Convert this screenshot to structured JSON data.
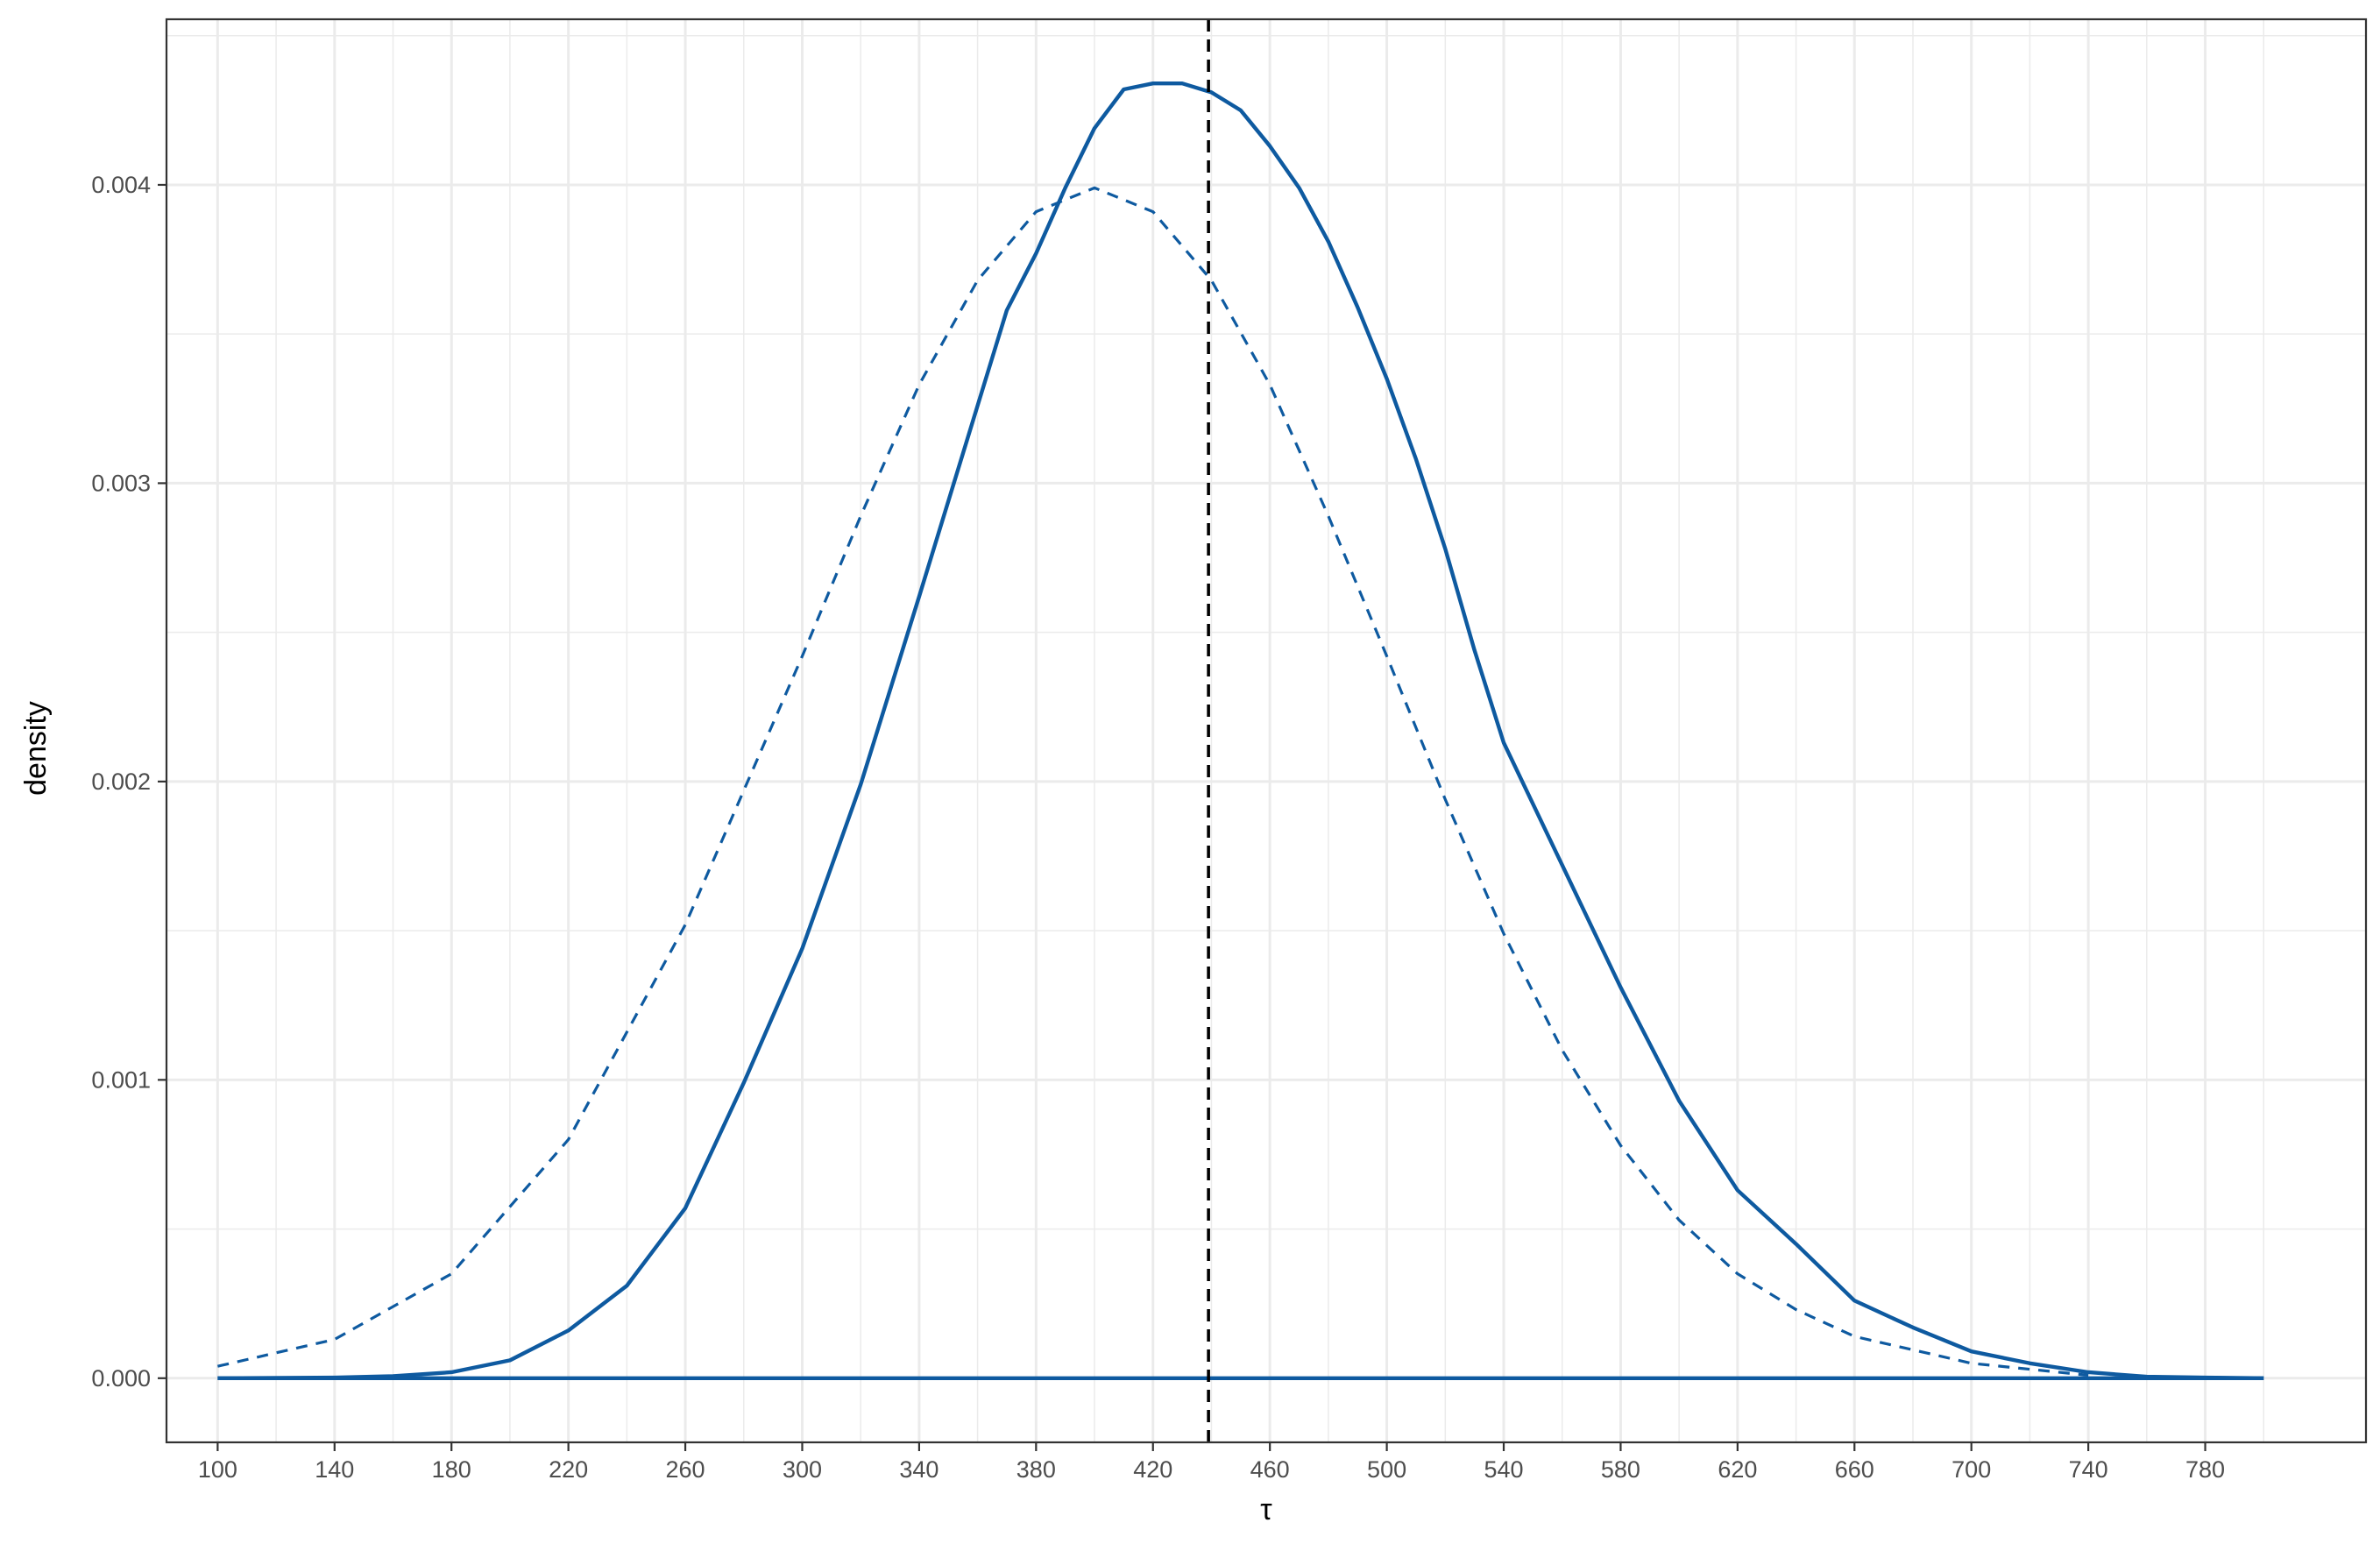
{
  "chart_data": {
    "type": "line",
    "title": "",
    "xlabel": "τ",
    "ylabel": "density",
    "xlim": [
      82.5,
      835
    ],
    "ylim": [
      -0.000215,
      0.004555
    ],
    "x_ticks": [
      100,
      140,
      180,
      220,
      260,
      300,
      340,
      380,
      420,
      460,
      500,
      540,
      580,
      620,
      660,
      700,
      740,
      780
    ],
    "x_tick_labels": [
      "100",
      "140",
      "180",
      "220",
      "260",
      "300",
      "340",
      "380",
      "420",
      "460",
      "500",
      "540",
      "580",
      "620",
      "660",
      "700",
      "740",
      "780"
    ],
    "y_ticks": [
      0.0,
      0.001,
      0.002,
      0.003,
      0.004
    ],
    "y_tick_labels": [
      "0.000",
      "0.001",
      "0.002",
      "0.003",
      "0.004"
    ],
    "grid": true,
    "legend": "none",
    "colors": {
      "series": "#0e5aa0",
      "vline": "#000000",
      "grid": "#ebebeb",
      "panel_border": "#333333"
    },
    "series": [
      {
        "style": "solid",
        "x": [
          100,
          140,
          160,
          180,
          200,
          220,
          240,
          260,
          280,
          300,
          320,
          340,
          360,
          370,
          380,
          390,
          400,
          410,
          420,
          430,
          440,
          450,
          460,
          470,
          480,
          490,
          500,
          510,
          520,
          530,
          540,
          560,
          580,
          600,
          620,
          640,
          660,
          680,
          700,
          720,
          740,
          760,
          780,
          800
        ],
        "y": [
          0.0,
          2e-06,
          7e-06,
          2e-05,
          6e-05,
          0.00016,
          0.00031,
          0.00057,
          0.00099,
          0.00144,
          0.00199,
          0.00262,
          0.00326,
          0.00358,
          0.00377,
          0.00399,
          0.00419,
          0.00432,
          0.00434,
          0.00434,
          0.00431,
          0.00425,
          0.00413,
          0.00399,
          0.00381,
          0.00359,
          0.00335,
          0.00308,
          0.00278,
          0.00244,
          0.00213,
          0.00172,
          0.00131,
          0.00093,
          0.00063,
          0.00045,
          0.00026,
          0.00017,
          9e-05,
          5e-05,
          2e-05,
          5e-06,
          2e-06,
          0.0
        ]
      },
      {
        "style": "dashed",
        "x": [
          100,
          140,
          180,
          220,
          260,
          300,
          320,
          340,
          360,
          380,
          400,
          420,
          440,
          460,
          480,
          500,
          520,
          540,
          560,
          580,
          600,
          620,
          640,
          660,
          700,
          740
        ],
        "y": [
          4e-05,
          0.00013,
          0.00035,
          0.0008,
          0.00152,
          0.00242,
          0.00289,
          0.00333,
          0.00368,
          0.00391,
          0.00399,
          0.00391,
          0.00368,
          0.00333,
          0.00289,
          0.00242,
          0.00194,
          0.00149,
          0.0011,
          0.00078,
          0.00053,
          0.00035,
          0.00023,
          0.00014,
          5e-05,
          1e-05
        ]
      },
      {
        "style": "solid",
        "x": [
          100,
          800
        ],
        "y": [
          0.0,
          0.0
        ]
      }
    ],
    "vline": {
      "x": 439,
      "style": "dashed"
    }
  }
}
